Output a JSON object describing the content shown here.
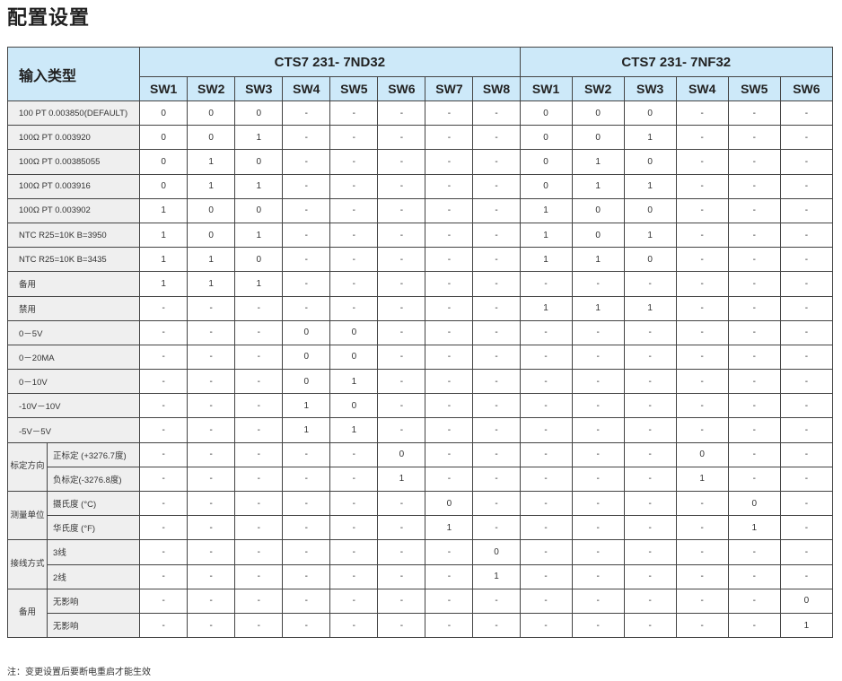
{
  "title": "配置设置",
  "header": {
    "corner": "输入类型",
    "model_a": "CTS7 231- 7ND32",
    "model_b": "CTS7 231- 7NF32",
    "switches_a": [
      "SW1",
      "SW2",
      "SW3",
      "SW4",
      "SW5",
      "SW6",
      "SW7",
      "SW8"
    ],
    "switches_b": [
      "SW1",
      "SW2",
      "SW3",
      "SW4",
      "SW5",
      "SW6"
    ]
  },
  "rows": [
    {
      "label": "100 PT 0.003850(DEFAULT)",
      "a": [
        "0",
        "0",
        "0",
        "-",
        "-",
        "-",
        "-",
        "-"
      ],
      "b": [
        "0",
        "0",
        "0",
        "-",
        "-",
        "-"
      ]
    },
    {
      "label": "100Ω PT 0.003920",
      "a": [
        "0",
        "0",
        "1",
        "-",
        "-",
        "-",
        "-",
        "-"
      ],
      "b": [
        "0",
        "0",
        "1",
        "-",
        "-",
        "-"
      ]
    },
    {
      "label": "100Ω PT 0.00385055",
      "a": [
        "0",
        "1",
        "0",
        "-",
        "-",
        "-",
        "-",
        "-"
      ],
      "b": [
        "0",
        "1",
        "0",
        "-",
        "-",
        "-"
      ]
    },
    {
      "label": "100Ω PT 0.003916",
      "a": [
        "0",
        "1",
        "1",
        "-",
        "-",
        "-",
        "-",
        "-"
      ],
      "b": [
        "0",
        "1",
        "1",
        "-",
        "-",
        "-"
      ]
    },
    {
      "label": "100Ω PT 0.003902",
      "a": [
        "1",
        "0",
        "0",
        "-",
        "-",
        "-",
        "-",
        "-"
      ],
      "b": [
        "1",
        "0",
        "0",
        "-",
        "-",
        "-"
      ]
    },
    {
      "label": "NTC R25=10K B=3950",
      "a": [
        "1",
        "0",
        "1",
        "-",
        "-",
        "-",
        "-",
        "-"
      ],
      "b": [
        "1",
        "0",
        "1",
        "-",
        "-",
        "-"
      ]
    },
    {
      "label": "NTC R25=10K B=3435",
      "a": [
        "1",
        "1",
        "0",
        "-",
        "-",
        "-",
        "-",
        "-"
      ],
      "b": [
        "1",
        "1",
        "0",
        "-",
        "-",
        "-"
      ]
    },
    {
      "label": "备用",
      "a": [
        "1",
        "1",
        "1",
        "-",
        "-",
        "-",
        "-",
        "-"
      ],
      "b": [
        "-",
        "-",
        "-",
        "-",
        "-",
        "-"
      ]
    },
    {
      "label": "禁用",
      "a": [
        "-",
        "-",
        "-",
        "-",
        "-",
        "-",
        "-",
        "-"
      ],
      "b": [
        "1",
        "1",
        "1",
        "-",
        "-",
        "-"
      ]
    },
    {
      "label": "0－5V",
      "a": [
        "-",
        "-",
        "-",
        "0",
        "0",
        "-",
        "-",
        "-"
      ],
      "b": [
        "-",
        "-",
        "-",
        "-",
        "-",
        "-"
      ]
    },
    {
      "label": "0－20MA",
      "a": [
        "-",
        "-",
        "-",
        "0",
        "0",
        "-",
        "-",
        "-"
      ],
      "b": [
        "-",
        "-",
        "-",
        "-",
        "-",
        "-"
      ]
    },
    {
      "label": "0－10V",
      "a": [
        "-",
        "-",
        "-",
        "0",
        "1",
        "-",
        "-",
        "-"
      ],
      "b": [
        "-",
        "-",
        "-",
        "-",
        "-",
        "-"
      ]
    },
    {
      "label": "-10V－10V",
      "a": [
        "-",
        "-",
        "-",
        "1",
        "0",
        "-",
        "-",
        "-"
      ],
      "b": [
        "-",
        "-",
        "-",
        "-",
        "-",
        "-"
      ]
    },
    {
      "label": "-5V－5V",
      "a": [
        "-",
        "-",
        "-",
        "1",
        "1",
        "-",
        "-",
        "-"
      ],
      "b": [
        "-",
        "-",
        "-",
        "-",
        "-",
        "-"
      ]
    },
    {
      "group": "标定方向",
      "sub": "正标定 (+3276.7度)",
      "a": [
        "-",
        "-",
        "-",
        "-",
        "-",
        "0",
        "-",
        "-"
      ],
      "b": [
        "-",
        "-",
        "-",
        "0",
        "-",
        "-"
      ]
    },
    {
      "sub": "负标定(-3276.8度)",
      "a": [
        "-",
        "-",
        "-",
        "-",
        "-",
        "1",
        "-",
        "-"
      ],
      "b": [
        "-",
        "-",
        "-",
        "1",
        "-",
        "-"
      ]
    },
    {
      "group": "测量单位",
      "sub": "摄氏度 (°C)",
      "a": [
        "-",
        "-",
        "-",
        "-",
        "-",
        "-",
        "0",
        "-"
      ],
      "b": [
        "-",
        "-",
        "-",
        "-",
        "0",
        "-"
      ]
    },
    {
      "sub": "华氏度 (°F)",
      "a": [
        "-",
        "-",
        "-",
        "-",
        "-",
        "-",
        "1",
        "-"
      ],
      "b": [
        "-",
        "-",
        "-",
        "-",
        "1",
        "-"
      ]
    },
    {
      "group": "接线方式",
      "sub": "3线",
      "a": [
        "-",
        "-",
        "-",
        "-",
        "-",
        "-",
        "-",
        "0"
      ],
      "b": [
        "-",
        "-",
        "-",
        "-",
        "-",
        "-"
      ]
    },
    {
      "sub": "2线",
      "a": [
        "-",
        "-",
        "-",
        "-",
        "-",
        "-",
        "-",
        "1"
      ],
      "b": [
        "-",
        "-",
        "-",
        "-",
        "-",
        "-"
      ]
    },
    {
      "group": "备用",
      "sub": "无影响",
      "a": [
        "-",
        "-",
        "-",
        "-",
        "-",
        "-",
        "-",
        "-"
      ],
      "b": [
        "-",
        "-",
        "-",
        "-",
        "-",
        "0"
      ]
    },
    {
      "sub": "无影响",
      "a": [
        "-",
        "-",
        "-",
        "-",
        "-",
        "-",
        "-",
        "-"
      ],
      "b": [
        "-",
        "-",
        "-",
        "-",
        "-",
        "1"
      ]
    }
  ],
  "note": "注：变更设置后要断电重启才能生效"
}
